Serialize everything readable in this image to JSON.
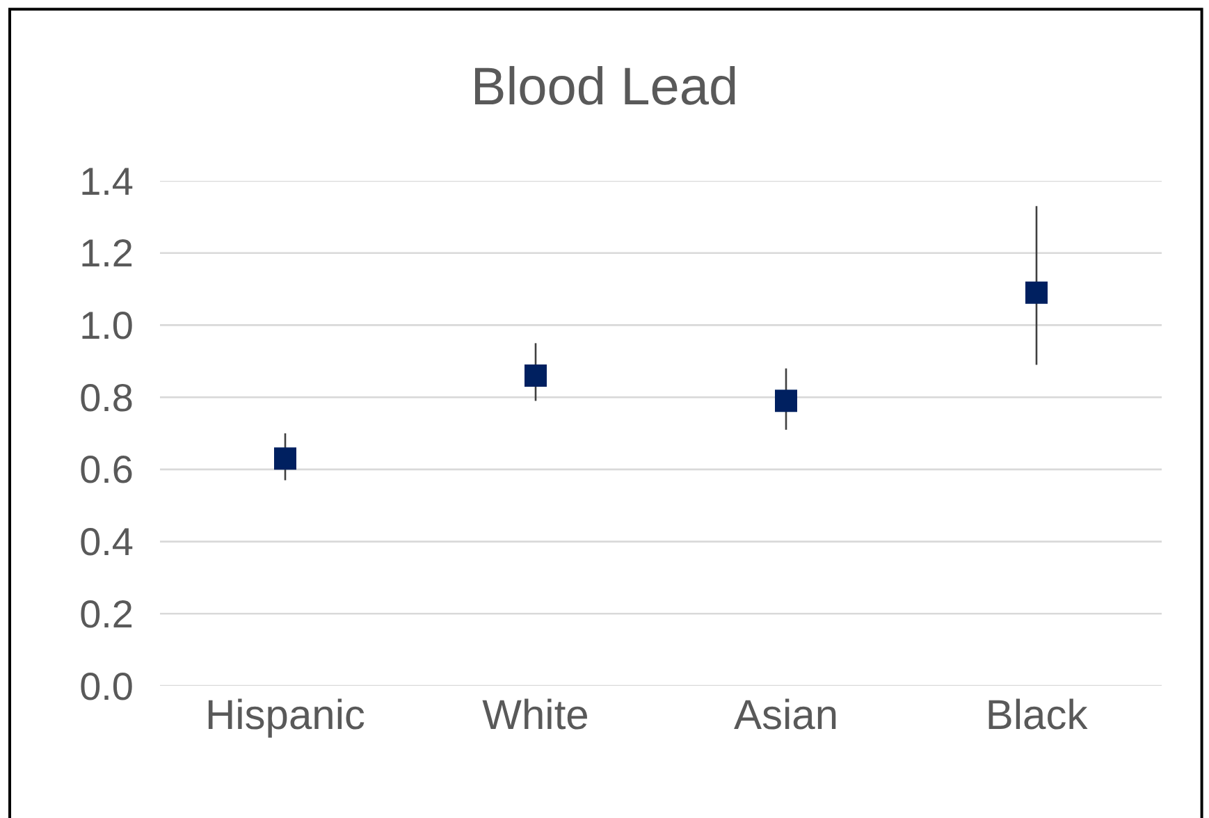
{
  "chart_data": {
    "type": "scatter",
    "title": "Blood Lead",
    "categories": [
      "Hispanic",
      "White",
      "Asian",
      "Black"
    ],
    "series": [
      {
        "color": "#002060",
        "values": [
          0.63,
          0.86,
          0.79,
          1.09
        ],
        "errors": [
          [
            0.57,
            0.7
          ],
          [
            0.79,
            0.95
          ],
          [
            0.71,
            0.88
          ],
          [
            0.89,
            1.33
          ]
        ]
      }
    ],
    "ylim": [
      0,
      1.4
    ],
    "yticks": [
      {
        "value": 0,
        "label": "0.0"
      },
      0.2,
      0.4,
      0.6,
      0.8,
      {
        "value": 1,
        "label": "1.0"
      },
      1.2,
      1.4
    ],
    "grid": "y",
    "marker": "square"
  }
}
